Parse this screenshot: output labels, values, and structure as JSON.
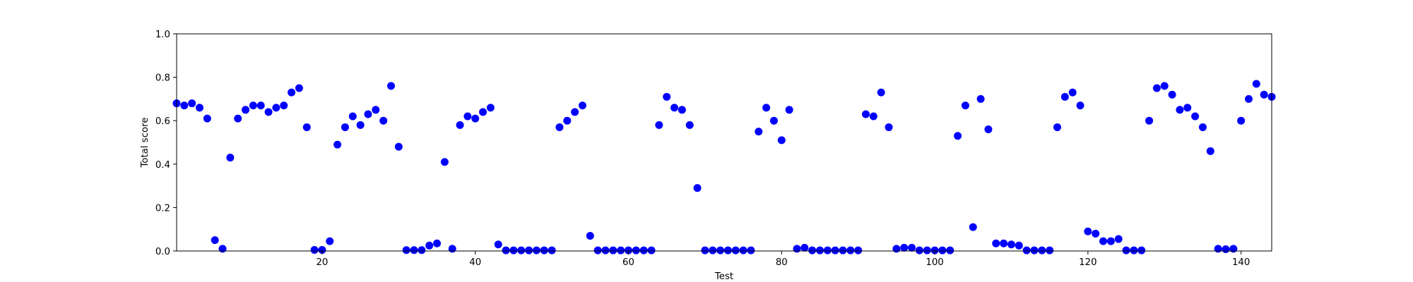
{
  "chart_data": {
    "type": "scatter",
    "title": "",
    "xlabel": "Test",
    "ylabel": "Total score",
    "xlim": [
      1,
      144
    ],
    "ylim": [
      0.0,
      1.0
    ],
    "xticks": [
      20,
      40,
      60,
      80,
      100,
      120,
      140
    ],
    "xtick_labels": [
      "20",
      "40",
      "60",
      "80",
      "100",
      "120",
      "140"
    ],
    "yticks": [
      0.0,
      0.2,
      0.4,
      0.6,
      0.8,
      1.0
    ],
    "ytick_labels": [
      "0.0",
      "0.2",
      "0.4",
      "0.6",
      "0.8",
      "1.0"
    ],
    "grid": false,
    "marker_color": "#0000ff",
    "series": [
      {
        "x": [
          1,
          2,
          3,
          4,
          5,
          6,
          7,
          8,
          9,
          10,
          11,
          12,
          13,
          14,
          15,
          16,
          17,
          18,
          19,
          20,
          21,
          22,
          23,
          24,
          25,
          26,
          27,
          28,
          29,
          30,
          31,
          32,
          33,
          34,
          35,
          36,
          37,
          38,
          39,
          40,
          41,
          42,
          43,
          44,
          45,
          46,
          47,
          48,
          49,
          50,
          51,
          52,
          53,
          54,
          55,
          56,
          57,
          58,
          59,
          60,
          61,
          62,
          63,
          64,
          65,
          66,
          67,
          68,
          69,
          70,
          71,
          72,
          73,
          74,
          75,
          76,
          77,
          78,
          79,
          80,
          81,
          82,
          83,
          84,
          85,
          86,
          87,
          88,
          89,
          90,
          91,
          92,
          93,
          94,
          95,
          96,
          97,
          98,
          99,
          100,
          101,
          102,
          103,
          104,
          105,
          106,
          107,
          108,
          109,
          110,
          111,
          112,
          113,
          114,
          115,
          116,
          117,
          118,
          119,
          120,
          121,
          122,
          123,
          124,
          125,
          126,
          127,
          128,
          129,
          130,
          131,
          132,
          133,
          134,
          135,
          136,
          137,
          138,
          139,
          140,
          141,
          142,
          143,
          144
        ],
        "y": [
          0.68,
          0.67,
          0.68,
          0.66,
          0.61,
          0.05,
          0.01,
          0.43,
          0.61,
          0.65,
          0.67,
          0.67,
          0.64,
          0.66,
          0.67,
          0.73,
          0.75,
          0.57,
          0.005,
          0.005,
          0.045,
          0.49,
          0.57,
          0.62,
          0.58,
          0.63,
          0.65,
          0.6,
          0.76,
          0.48,
          0.004,
          0.004,
          0.004,
          0.025,
          0.035,
          0.41,
          0.01,
          0.58,
          0.62,
          0.61,
          0.64,
          0.66,
          0.03,
          0.003,
          0.003,
          0.003,
          0.003,
          0.003,
          0.003,
          0.003,
          0.57,
          0.6,
          0.64,
          0.67,
          0.07,
          0.003,
          0.003,
          0.003,
          0.003,
          0.003,
          0.003,
          0.003,
          0.003,
          0.58,
          0.71,
          0.66,
          0.65,
          0.58,
          0.29,
          0.003,
          0.003,
          0.003,
          0.003,
          0.003,
          0.003,
          0.003,
          0.55,
          0.66,
          0.6,
          0.51,
          0.65,
          0.01,
          0.015,
          0.003,
          0.003,
          0.003,
          0.003,
          0.003,
          0.003,
          0.003,
          0.63,
          0.62,
          0.73,
          0.57,
          0.01,
          0.015,
          0.015,
          0.003,
          0.003,
          0.003,
          0.003,
          0.003,
          0.53,
          0.67,
          0.11,
          0.7,
          0.56,
          0.035,
          0.035,
          0.03,
          0.025,
          0.003,
          0.003,
          0.003,
          0.003,
          0.57,
          0.71,
          0.73,
          0.67,
          0.09,
          0.08,
          0.045,
          0.045,
          0.055,
          0.003,
          0.003,
          0.003,
          0.6,
          0.75,
          0.76,
          0.72,
          0.65,
          0.66,
          0.62,
          0.57,
          0.46,
          0.01,
          0.008,
          0.01,
          0.6,
          0.7,
          0.77,
          0.72,
          0.71
        ]
      }
    ]
  }
}
